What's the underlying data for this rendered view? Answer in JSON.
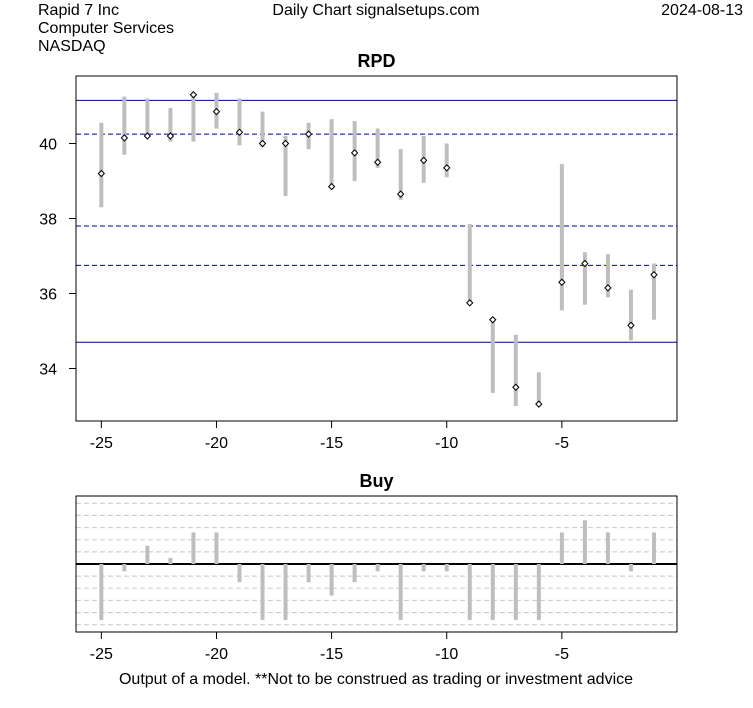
{
  "header": {
    "company": "Rapid 7 Inc",
    "sector": "Computer Services",
    "exchange": "NASDAQ",
    "source": "Daily Chart signalsetups.com",
    "date": "2024-08-13"
  },
  "footer": {
    "disclaimer": "Output of a model. **Not to be construed as trading or investment advice"
  },
  "colors": {
    "range_bar": "#bebebe",
    "level_line": "#00008b",
    "close_marker": "#000000",
    "signal_bar": "#bebebe",
    "zero_line": "#000000"
  },
  "chart_data": [
    {
      "type": "range",
      "title": "RPD",
      "xlabel": "",
      "ylabel": "",
      "xlim": [
        -26.1,
        0
      ],
      "ylim": [
        32.6,
        41.8
      ],
      "x_ticks": [
        -25,
        -20,
        -15,
        -10,
        -5
      ],
      "y_ticks": [
        34,
        36,
        38,
        40
      ],
      "points": [
        {
          "x": -25,
          "low": 38.3,
          "high": 40.55,
          "close": 39.2
        },
        {
          "x": -24,
          "low": 39.7,
          "high": 41.25,
          "close": 40.15
        },
        {
          "x": -23,
          "low": 40.2,
          "high": 41.2,
          "close": 40.2
        },
        {
          "x": -22,
          "low": 40.05,
          "high": 40.95,
          "close": 40.2
        },
        {
          "x": -21,
          "low": 40.05,
          "high": 41.35,
          "close": 41.3
        },
        {
          "x": -20,
          "low": 40.4,
          "high": 41.35,
          "close": 40.85
        },
        {
          "x": -19,
          "low": 39.95,
          "high": 41.2,
          "close": 40.3
        },
        {
          "x": -18,
          "low": 39.9,
          "high": 40.85,
          "close": 40.0
        },
        {
          "x": -17,
          "low": 38.6,
          "high": 40.2,
          "close": 40.0
        },
        {
          "x": -16,
          "low": 39.85,
          "high": 40.55,
          "close": 40.25
        },
        {
          "x": -15,
          "low": 38.8,
          "high": 40.65,
          "close": 38.85
        },
        {
          "x": -14,
          "low": 39.0,
          "high": 40.6,
          "close": 39.75
        },
        {
          "x": -13,
          "low": 39.35,
          "high": 40.4,
          "close": 39.5
        },
        {
          "x": -12,
          "low": 38.5,
          "high": 39.85,
          "close": 38.65
        },
        {
          "x": -11,
          "low": 38.95,
          "high": 40.2,
          "close": 39.55
        },
        {
          "x": -10,
          "low": 39.1,
          "high": 40.0,
          "close": 39.35
        },
        {
          "x": -9,
          "low": 35.75,
          "high": 37.85,
          "close": 35.75
        },
        {
          "x": -8,
          "low": 33.35,
          "high": 35.35,
          "close": 35.3
        },
        {
          "x": -7,
          "low": 33.0,
          "high": 34.9,
          "close": 33.5
        },
        {
          "x": -6,
          "low": 33.0,
          "high": 33.9,
          "close": 33.05
        },
        {
          "x": -5,
          "low": 35.55,
          "high": 39.45,
          "close": 36.3
        },
        {
          "x": -4,
          "low": 35.7,
          "high": 37.1,
          "close": 36.8
        },
        {
          "x": -3,
          "low": 35.9,
          "high": 37.05,
          "close": 36.15
        },
        {
          "x": -2,
          "low": 34.75,
          "high": 36.1,
          "close": 35.15
        },
        {
          "x": -1,
          "low": 35.3,
          "high": 36.8,
          "close": 36.5
        }
      ],
      "levels": {
        "solid": [
          41.15,
          34.7
        ],
        "dashed": [
          40.25,
          37.8,
          36.75
        ]
      },
      "grid": false
    },
    {
      "type": "bar",
      "title": "Buy",
      "xlabel": "",
      "ylabel": "",
      "xlim": [
        -26.1,
        0
      ],
      "ylim": [
        -5.6,
        5.6
      ],
      "x_ticks": [
        -25,
        -20,
        -15,
        -10,
        -5
      ],
      "grid_lines": [
        -5,
        -4,
        -3,
        -2,
        -1,
        1,
        2,
        3,
        4,
        5
      ],
      "points": [
        {
          "x": -25,
          "value": -4.6
        },
        {
          "x": -24,
          "value": -0.6
        },
        {
          "x": -23,
          "value": 1.5
        },
        {
          "x": -22,
          "value": 0.5
        },
        {
          "x": -21,
          "value": 2.6
        },
        {
          "x": -20,
          "value": 2.6
        },
        {
          "x": -19,
          "value": -1.5
        },
        {
          "x": -18,
          "value": -4.6
        },
        {
          "x": -17,
          "value": -4.6
        },
        {
          "x": -16,
          "value": -1.5
        },
        {
          "x": -15,
          "value": -2.6
        },
        {
          "x": -14,
          "value": -1.5
        },
        {
          "x": -13,
          "value": -0.6
        },
        {
          "x": -12,
          "value": -4.6
        },
        {
          "x": -11,
          "value": -0.6
        },
        {
          "x": -10,
          "value": -0.6
        },
        {
          "x": -9,
          "value": -4.6
        },
        {
          "x": -8,
          "value": -4.6
        },
        {
          "x": -7,
          "value": -4.6
        },
        {
          "x": -6,
          "value": -4.6
        },
        {
          "x": -5,
          "value": 2.6
        },
        {
          "x": -4,
          "value": 3.6
        },
        {
          "x": -3,
          "value": 2.6
        },
        {
          "x": -2,
          "value": -0.6
        },
        {
          "x": -1,
          "value": 2.6
        }
      ],
      "grid": true
    }
  ]
}
